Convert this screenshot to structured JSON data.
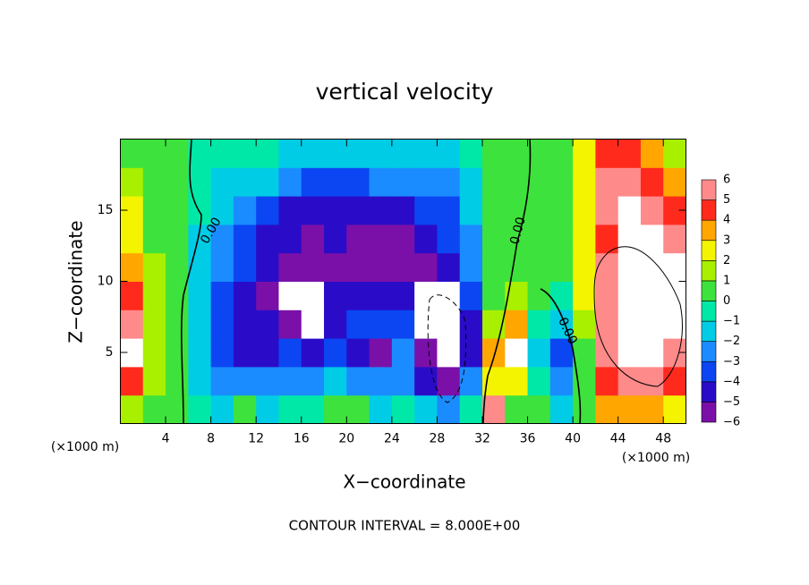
{
  "chart_data": {
    "type": "heatmap",
    "title": "vertical velocity",
    "x_label": "X−coordinate",
    "y_label": "Z−coordinate",
    "x_unit_label": "(×1000 m)",
    "footer": "CONTOUR INTERVAL = 8.000E+00",
    "contour_labels": [
      "0.00",
      "0.00",
      "0.00"
    ],
    "xlim": [
      0,
      50
    ],
    "ylim": [
      0,
      20
    ],
    "xticks": [
      4,
      8,
      12,
      16,
      20,
      24,
      28,
      32,
      36,
      40,
      44,
      48
    ],
    "yticks": [
      5,
      10,
      15
    ],
    "x": [
      1,
      3,
      5,
      7,
      9,
      11,
      13,
      15,
      17,
      19,
      21,
      23,
      25,
      27,
      29,
      31,
      33,
      35,
      37,
      39,
      41,
      43,
      45,
      47,
      49
    ],
    "y": [
      1,
      3,
      5,
      7,
      9,
      11,
      13,
      15,
      17,
      19
    ],
    "values": [
      [
        2,
        1,
        0.5,
        -0.5,
        -1,
        1,
        -1,
        -0.5,
        -0.5,
        0.5,
        0.5,
        -1,
        -0.5,
        -1.5,
        -2,
        -0.5,
        6,
        1,
        0.5,
        -1,
        0.5,
        4,
        4,
        4,
        3
      ],
      [
        4.5,
        1.5,
        0.5,
        -1,
        -2,
        -2,
        -2,
        -2,
        -2,
        -1.5,
        -2,
        -2,
        -2,
        -4,
        -6,
        -2,
        3,
        3,
        0,
        -2,
        0.5,
        5,
        6,
        6,
        5
      ],
      [
        7,
        2,
        0.5,
        -1,
        -3,
        -4,
        -4,
        -3.5,
        -4,
        -3,
        -4,
        -5,
        -2.5,
        -6,
        -7,
        -4,
        4,
        7,
        -1,
        -3,
        1,
        5.5,
        7,
        7,
        6
      ],
      [
        5.5,
        2,
        0.5,
        -1,
        -3,
        -4.5,
        -4.5,
        -5,
        -7,
        -4,
        -3,
        -3.5,
        -3,
        -7,
        -8,
        -4,
        2,
        4,
        0,
        -1,
        2,
        6,
        8,
        7,
        6.5
      ],
      [
        5,
        2,
        0.5,
        -1,
        -3,
        -4,
        -5,
        -7,
        -7,
        -4,
        -4,
        -4,
        -4,
        -7,
        -7,
        -3,
        1,
        2,
        0.5,
        0,
        3,
        6,
        8,
        7,
        7
      ],
      [
        4,
        1.5,
        0.5,
        -1,
        -2.5,
        -3.5,
        -4.5,
        -5.5,
        -6,
        -5,
        -5,
        -5,
        -5,
        -5.5,
        -4,
        -2.5,
        0.5,
        1,
        0.5,
        0.5,
        3,
        5.5,
        7,
        7,
        7
      ],
      [
        3,
        1,
        0.5,
        -1,
        -2,
        -3,
        -4,
        -4.5,
        -5,
        -4.5,
        -5,
        -5,
        -5,
        -4,
        -3.5,
        -2,
        0.5,
        0.5,
        0.5,
        0.5,
        3,
        5,
        7,
        7,
        6
      ],
      [
        2.5,
        1,
        0.5,
        -0.5,
        -1.5,
        -2.5,
        -3,
        -4,
        -4,
        -4,
        -4.5,
        -4,
        -4,
        -3.5,
        -3,
        -1.5,
        0.5,
        0.5,
        0.5,
        0.5,
        3,
        6,
        6.5,
        6,
        5
      ],
      [
        1.5,
        1,
        0.5,
        -0.5,
        -1,
        -1,
        -1.5,
        -2.5,
        -3,
        -3,
        -3,
        -2.5,
        -2.5,
        -2.5,
        -2,
        -1,
        0.5,
        0.5,
        0.5,
        1,
        3,
        5.5,
        5.5,
        5,
        4
      ],
      [
        1,
        1,
        0.5,
        -0.5,
        -0.5,
        -0.5,
        -0.5,
        -1,
        -1.5,
        -1.5,
        -1.5,
        -1,
        -1,
        -1,
        -1,
        -0.5,
        0.5,
        0.5,
        0.5,
        1,
        3,
        4.5,
        4.5,
        3.5,
        2
      ]
    ],
    "colorbar": {
      "levels": [
        {
          "value": -6,
          "label": "−6"
        },
        {
          "value": -5,
          "label": "−5"
        },
        {
          "value": -4,
          "label": "−4"
        },
        {
          "value": -3,
          "label": "−3"
        },
        {
          "value": -2,
          "label": "−2"
        },
        {
          "value": -1,
          "label": "−1"
        },
        0,
        1,
        2,
        3,
        4,
        5,
        6
      ],
      "colors": [
        "#7a10a8",
        "#2a0cc8",
        "#0b46f2",
        "#1a8cff",
        "#00cce6",
        "#00e8a8",
        "#3ee23c",
        "#a8f000",
        "#f4f400",
        "#ffa600",
        "#ff2a1c",
        "#ff8a8a"
      ],
      "out_of_range_color": "#ffffff"
    }
  }
}
